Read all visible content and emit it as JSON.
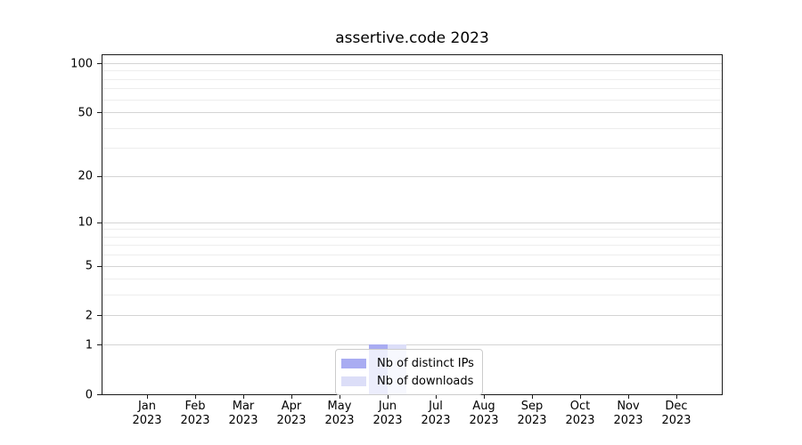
{
  "title": "assertive.code 2023",
  "chart_data": {
    "type": "bar",
    "months": [
      "Jan",
      "Feb",
      "Mar",
      "Apr",
      "May",
      "Jun",
      "Jul",
      "Aug",
      "Sep",
      "Oct",
      "Nov",
      "Dec"
    ],
    "year": "2023",
    "series": [
      {
        "name": "Nb of distinct IPs",
        "color": "#a9acf2",
        "values": [
          0,
          0,
          0,
          0,
          0,
          1,
          0,
          0,
          0,
          0,
          0,
          0
        ]
      },
      {
        "name": "Nb of downloads",
        "color": "#dcdef8",
        "values": [
          0,
          0,
          0,
          0,
          0,
          1,
          0,
          0,
          0,
          0,
          0,
          0
        ]
      }
    ],
    "yscale": "log1p",
    "ylim": [
      0,
      100
    ],
    "y_major_ticks": [
      0,
      1,
      2,
      5,
      10,
      20,
      50,
      100
    ],
    "y_minor_gridlines": [
      3,
      4,
      6,
      7,
      8,
      9,
      30,
      40,
      60,
      70,
      80,
      90
    ],
    "grid": true,
    "legend_position": "lower-center-inside",
    "colors": {
      "grid_major": "#d4d4d4",
      "grid_minor": "#ededed",
      "axis": "#1a1a1a",
      "background": "#ffffff"
    }
  }
}
